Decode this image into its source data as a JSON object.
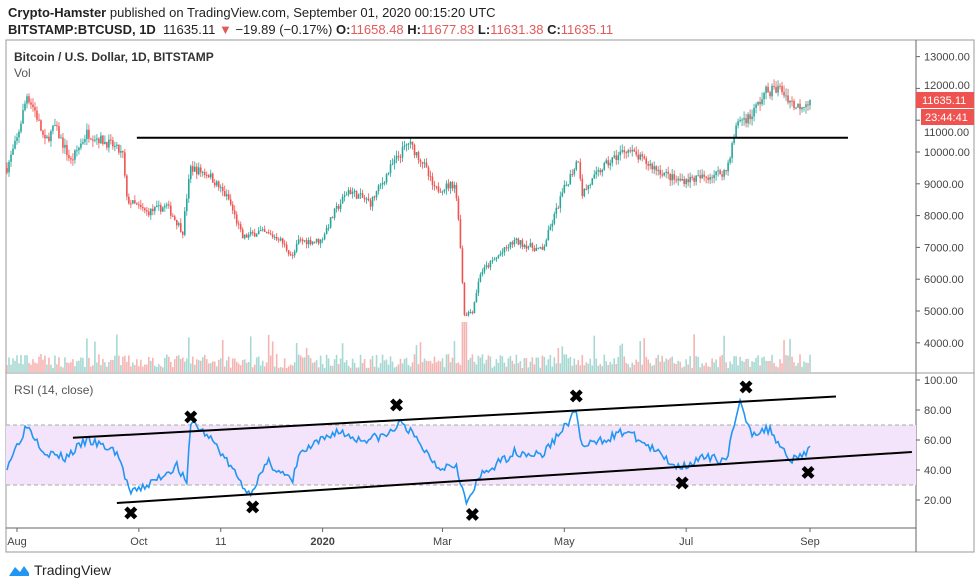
{
  "header": {
    "author": "Crypto-Hamster",
    "published_text": "published on TradingView.com, September 01, 2020 00:15:20 UTC",
    "symbol": "BITSTAMP:BTCUSD, 1D",
    "last": "11635.11",
    "change": "−19.89 (−0.17%)",
    "o_label": "O:",
    "o": "11658.48",
    "h_label": "H:",
    "h": "11677.83",
    "l_label": "L:",
    "l": "11631.38",
    "c_label": "C:",
    "c": "11635.11"
  },
  "footer": {
    "brand": "TradingView"
  },
  "colors": {
    "up": "#26a69a",
    "down": "#ef5350",
    "rsi": "#2196f3",
    "rsi_band": "#f3e4fb",
    "price_tag": "#ef5350"
  },
  "chart_data": [
    {
      "type": "candlestick",
      "title": "Bitcoin / U.S. Dollar, 1D, BITSTAMP",
      "volume_label": "Vol",
      "x_ticks": [
        "Aug",
        "Oct",
        "11",
        "2020",
        "Mar",
        "May",
        "Jul",
        "Sep"
      ],
      "x_tick_dates": [
        "2019-08-01",
        "2019-10-01",
        "2019-11-11",
        "2020-01-01",
        "2020-03-01",
        "2020-05-01",
        "2020-07-01",
        "2020-09-01"
      ],
      "y_ticks": [
        "13000.00",
        "12000.00",
        "11000.00",
        "10000.00",
        "9000.00",
        "8000.00",
        "7000.00",
        "6000.00",
        "5000.00",
        "4000.00"
      ],
      "last_price_tag": "11635.11",
      "countdown_tag": "23:44:41",
      "close_anchors": [
        [
          "2019-07-27",
          9500
        ],
        [
          "2019-08-01",
          10400
        ],
        [
          "2019-08-06",
          11800
        ],
        [
          "2019-08-10",
          11300
        ],
        [
          "2019-08-15",
          10300
        ],
        [
          "2019-08-20",
          10800
        ],
        [
          "2019-08-28",
          9700
        ],
        [
          "2019-09-05",
          10600
        ],
        [
          "2019-09-18",
          10200
        ],
        [
          "2019-09-23",
          9900
        ],
        [
          "2019-09-25",
          8500
        ],
        [
          "2019-10-05",
          8100
        ],
        [
          "2019-10-15",
          8300
        ],
        [
          "2019-10-23",
          7500
        ],
        [
          "2019-10-25",
          8600
        ],
        [
          "2019-10-27",
          9500
        ],
        [
          "2019-11-05",
          9300
        ],
        [
          "2019-11-15",
          8500
        ],
        [
          "2019-11-22",
          7300
        ],
        [
          "2019-11-30",
          7500
        ],
        [
          "2019-12-10",
          7300
        ],
        [
          "2019-12-17",
          6700
        ],
        [
          "2019-12-20",
          7200
        ],
        [
          "2019-12-31",
          7200
        ],
        [
          "2020-01-07",
          8100
        ],
        [
          "2020-01-14",
          8800
        ],
        [
          "2020-01-25",
          8400
        ],
        [
          "2020-02-05",
          9600
        ],
        [
          "2020-02-13",
          10300
        ],
        [
          "2020-02-20",
          9700
        ],
        [
          "2020-02-26",
          8800
        ],
        [
          "2020-03-07",
          9000
        ],
        [
          "2020-03-09",
          8000
        ],
        [
          "2020-03-12",
          4900
        ],
        [
          "2020-03-16",
          5000
        ],
        [
          "2020-03-20",
          6200
        ],
        [
          "2020-04-06",
          7200
        ],
        [
          "2020-04-20",
          6900
        ],
        [
          "2020-04-30",
          8700
        ],
        [
          "2020-05-08",
          9800
        ],
        [
          "2020-05-10",
          8700
        ],
        [
          "2020-05-20",
          9500
        ],
        [
          "2020-06-01",
          10100
        ],
        [
          "2020-06-10",
          9700
        ],
        [
          "2020-06-26",
          9100
        ],
        [
          "2020-07-10",
          9200
        ],
        [
          "2020-07-21",
          9400
        ],
        [
          "2020-07-27",
          11000
        ],
        [
          "2020-08-02",
          11100
        ],
        [
          "2020-08-10",
          11900
        ],
        [
          "2020-08-17",
          12000
        ],
        [
          "2020-08-25",
          11400
        ],
        [
          "2020-09-01",
          11635
        ]
      ],
      "annotations": [
        {
          "type": "horizontal-line",
          "value": 10450,
          "from": "2019-09-30",
          "to": "2020-09-20"
        }
      ]
    },
    {
      "type": "line",
      "title": "RSI (14, close)",
      "y_ticks": [
        "100.00",
        "80.00",
        "60.00",
        "40.00",
        "20.00"
      ],
      "band": [
        30,
        70
      ],
      "anchors": [
        [
          "2019-07-27",
          43
        ],
        [
          "2019-08-06",
          70
        ],
        [
          "2019-08-15",
          52
        ],
        [
          "2019-08-25",
          48
        ],
        [
          "2019-09-05",
          60
        ],
        [
          "2019-09-20",
          52
        ],
        [
          "2019-09-27",
          24
        ],
        [
          "2019-10-08",
          32
        ],
        [
          "2019-10-20",
          43
        ],
        [
          "2019-10-25",
          30
        ],
        [
          "2019-10-27",
          73
        ],
        [
          "2019-11-08",
          58
        ],
        [
          "2019-11-25",
          24
        ],
        [
          "2019-12-05",
          45
        ],
        [
          "2019-12-17",
          32
        ],
        [
          "2019-12-20",
          50
        ],
        [
          "2020-01-08",
          66
        ],
        [
          "2020-01-20",
          60
        ],
        [
          "2020-02-02",
          63
        ],
        [
          "2020-02-10",
          72
        ],
        [
          "2020-02-20",
          55
        ],
        [
          "2020-02-28",
          42
        ],
        [
          "2020-03-08",
          44
        ],
        [
          "2020-03-13",
          17
        ],
        [
          "2020-03-20",
          36
        ],
        [
          "2020-04-06",
          52
        ],
        [
          "2020-04-20",
          50
        ],
        [
          "2020-05-07",
          79
        ],
        [
          "2020-05-10",
          55
        ],
        [
          "2020-06-01",
          66
        ],
        [
          "2020-06-15",
          53
        ],
        [
          "2020-06-27",
          42
        ],
        [
          "2020-07-10",
          48
        ],
        [
          "2020-07-21",
          47
        ],
        [
          "2020-07-28",
          84
        ],
        [
          "2020-08-03",
          65
        ],
        [
          "2020-08-12",
          67
        ],
        [
          "2020-08-22",
          47
        ],
        [
          "2020-09-01",
          53
        ]
      ],
      "annotations": [
        {
          "type": "trend-line",
          "from": [
            "2019-08-29",
            61.5
          ],
          "to": [
            "2020-09-14",
            89
          ]
        },
        {
          "type": "trend-line",
          "from": [
            "2019-09-20",
            18
          ],
          "to": [
            "2020-10-22",
            52
          ]
        },
        {
          "type": "x-marks",
          "points": [
            [
              "2019-09-27",
              11
            ],
            [
              "2019-10-27",
              75
            ],
            [
              "2019-11-27",
              15
            ],
            [
              "2020-02-07",
              83
            ],
            [
              "2020-03-16",
              10
            ],
            [
              "2020-05-07",
              89
            ],
            [
              "2020-06-29",
              31
            ],
            [
              "2020-07-31",
              95
            ],
            [
              "2020-08-31",
              38
            ]
          ]
        }
      ]
    }
  ]
}
